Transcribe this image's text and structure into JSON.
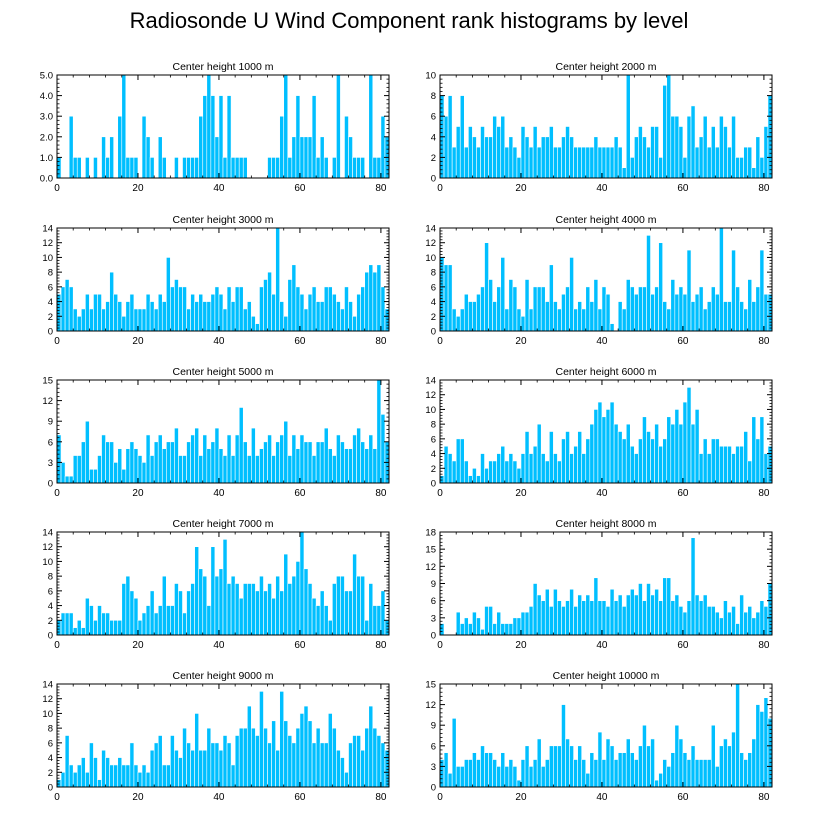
{
  "title": "Radiosonde U Wind Component rank histograms by level",
  "colors": {
    "bar": "#00bfff",
    "bar_edge": "#ffffff",
    "axis": "#000000"
  },
  "chart_data": [
    {
      "type": "bar",
      "title": "Center height 1000 m",
      "xlim": [
        0,
        82
      ],
      "ylim": [
        0,
        5
      ],
      "xticks": [
        0,
        20,
        40,
        60,
        80
      ],
      "yticks": [
        0,
        1,
        2,
        3,
        4,
        5
      ],
      "ytick_labels": [
        "0.0",
        "1.0",
        "2.0",
        "3.0",
        "4.0",
        "5.0"
      ],
      "values": [
        1,
        0,
        0,
        3,
        1,
        1,
        0,
        1,
        0,
        1,
        0,
        2,
        1,
        2,
        0,
        3,
        5,
        1,
        1,
        1,
        0,
        3,
        2,
        1,
        0,
        2,
        1,
        0,
        0,
        1,
        0,
        1,
        1,
        1,
        1,
        3,
        4,
        5,
        4,
        2,
        4,
        1,
        4,
        1,
        1,
        1,
        1,
        0,
        0,
        0,
        0,
        0,
        1,
        1,
        1,
        3,
        5,
        1,
        2,
        4,
        2,
        2,
        2,
        4,
        1,
        2,
        1,
        0,
        1,
        5,
        0,
        3,
        2,
        1,
        1,
        1,
        0,
        5,
        1,
        1,
        3,
        2
      ]
    },
    {
      "type": "bar",
      "title": "Center height 2000 m",
      "xlim": [
        0,
        82
      ],
      "ylim": [
        0,
        10
      ],
      "xticks": [
        0,
        20,
        40,
        60,
        80
      ],
      "yticks": [
        0,
        2,
        4,
        6,
        8,
        10
      ],
      "ytick_labels": [
        "0",
        "2",
        "4",
        "6",
        "8",
        "10"
      ],
      "values": [
        8,
        6,
        8,
        3,
        5,
        8,
        3,
        5,
        4,
        3,
        5,
        4,
        4,
        6,
        5,
        6,
        3,
        4,
        3,
        2,
        5,
        4,
        3,
        5,
        3,
        4,
        4,
        5,
        3,
        3,
        4,
        5,
        4,
        3,
        3,
        3,
        3,
        3,
        4,
        3,
        3,
        3,
        3,
        4,
        3,
        1,
        10,
        2,
        4,
        5,
        4,
        3,
        5,
        5,
        2,
        9,
        10,
        6,
        6,
        5,
        2,
        6,
        7,
        3,
        4,
        6,
        3,
        5,
        3,
        6,
        5,
        3,
        6,
        2,
        2,
        3,
        3,
        1,
        4,
        2,
        5,
        8
      ]
    },
    {
      "type": "bar",
      "title": "Center height 3000 m",
      "xlim": [
        0,
        82
      ],
      "ylim": [
        0,
        14
      ],
      "xticks": [
        0,
        20,
        40,
        60,
        80
      ],
      "yticks": [
        0,
        2,
        4,
        6,
        8,
        10,
        12,
        14
      ],
      "ytick_labels": [
        "0",
        "2",
        "4",
        "6",
        "8",
        "10",
        "12",
        "14"
      ],
      "values": [
        5,
        6,
        7,
        6,
        3,
        2,
        3,
        5,
        3,
        5,
        5,
        3,
        4,
        8,
        5,
        4,
        2,
        4,
        5,
        3,
        3,
        3,
        5,
        4,
        3,
        5,
        4,
        10,
        6,
        7,
        6,
        6,
        3,
        5,
        4,
        5,
        4,
        4,
        5,
        6,
        5,
        3,
        6,
        4,
        6,
        6,
        3,
        4,
        2,
        1,
        6,
        7,
        8,
        5,
        14,
        4,
        2,
        7,
        9,
        6,
        5,
        3,
        5,
        6,
        4,
        4,
        6,
        6,
        5,
        4,
        3,
        6,
        4,
        2,
        5,
        6,
        8,
        9,
        8,
        9,
        6,
        3
      ]
    },
    {
      "type": "bar",
      "title": "Center height 4000 m",
      "xlim": [
        0,
        82
      ],
      "ylim": [
        0,
        14
      ],
      "xticks": [
        0,
        20,
        40,
        60,
        80
      ],
      "yticks": [
        0,
        2,
        4,
        6,
        8,
        10,
        12,
        14
      ],
      "ytick_labels": [
        "0",
        "2",
        "4",
        "6",
        "8",
        "10",
        "12",
        "14"
      ],
      "values": [
        10,
        9,
        9,
        3,
        2,
        3,
        5,
        4,
        4,
        5,
        6,
        12,
        7,
        4,
        6,
        10,
        3,
        7,
        6,
        3,
        2,
        7,
        3,
        6,
        6,
        6,
        4,
        9,
        4,
        3,
        5,
        6,
        10,
        3,
        4,
        3,
        6,
        4,
        7,
        3,
        6,
        5,
        1,
        0,
        4,
        3,
        7,
        6,
        5,
        6,
        6,
        13,
        5,
        6,
        12,
        4,
        3,
        7,
        5,
        6,
        5,
        11,
        4,
        5,
        6,
        3,
        4,
        6,
        5,
        14,
        4,
        4,
        11,
        6,
        4,
        3,
        7,
        4,
        6,
        11,
        5,
        5
      ]
    },
    {
      "type": "bar",
      "title": "Center height 5000 m",
      "xlim": [
        0,
        82
      ],
      "ylim": [
        0,
        15
      ],
      "xticks": [
        0,
        20,
        40,
        60,
        80
      ],
      "yticks": [
        0,
        3,
        6,
        9,
        12,
        15
      ],
      "ytick_labels": [
        "0",
        "3",
        "6",
        "9",
        "12",
        "15"
      ],
      "values": [
        7,
        3,
        1,
        1,
        4,
        4,
        6,
        9,
        2,
        2,
        4,
        7,
        6,
        6,
        3,
        5,
        2,
        5,
        6,
        5,
        4,
        3,
        7,
        4,
        6,
        7,
        5,
        6,
        6,
        8,
        4,
        4,
        6,
        7,
        8,
        4,
        7,
        5,
        6,
        8,
        5,
        4,
        7,
        4,
        7,
        11,
        6,
        4,
        8,
        4,
        5,
        6,
        7,
        4,
        6,
        7,
        9,
        4,
        7,
        5,
        7,
        6,
        6,
        4,
        6,
        6,
        8,
        5,
        4,
        7,
        6,
        5,
        5,
        7,
        8,
        6,
        5,
        7,
        5,
        15,
        10,
        6
      ]
    },
    {
      "type": "bar",
      "title": "Center height 6000 m",
      "xlim": [
        0,
        82
      ],
      "ylim": [
        0,
        14
      ],
      "xticks": [
        0,
        20,
        40,
        60,
        80
      ],
      "yticks": [
        0,
        2,
        4,
        6,
        8,
        10,
        12,
        14
      ],
      "ytick_labels": [
        "0",
        "2",
        "4",
        "6",
        "8",
        "10",
        "12",
        "14"
      ],
      "values": [
        1,
        5,
        4,
        3,
        6,
        6,
        3,
        1,
        2,
        1,
        4,
        2,
        3,
        3,
        4,
        5,
        3,
        4,
        3,
        2,
        4,
        7,
        4,
        5,
        8,
        4,
        3,
        7,
        4,
        3,
        6,
        7,
        4,
        5,
        7,
        4,
        6,
        8,
        10,
        11,
        9,
        10,
        11,
        8,
        7,
        6,
        8,
        5,
        4,
        6,
        9,
        7,
        6,
        8,
        5,
        6,
        9,
        8,
        10,
        8,
        11,
        13,
        8,
        10,
        4,
        6,
        4,
        6,
        6,
        5,
        5,
        5,
        4,
        5,
        5,
        7,
        3,
        9,
        6,
        9,
        4,
        5
      ]
    },
    {
      "type": "bar",
      "title": "Center height 7000 m",
      "xlim": [
        0,
        82
      ],
      "ylim": [
        0,
        14
      ],
      "xticks": [
        0,
        20,
        40,
        60,
        80
      ],
      "yticks": [
        0,
        2,
        4,
        6,
        8,
        10,
        12,
        14
      ],
      "ytick_labels": [
        "0",
        "2",
        "4",
        "6",
        "8",
        "10",
        "12",
        "14"
      ],
      "values": [
        2,
        3,
        3,
        3,
        1,
        2,
        1,
        5,
        4,
        2,
        4,
        3,
        3,
        2,
        2,
        2,
        7,
        8,
        6,
        5,
        2,
        3,
        4,
        6,
        3,
        4,
        8,
        4,
        4,
        7,
        6,
        3,
        6,
        7,
        12,
        9,
        8,
        4,
        12,
        8,
        9,
        13,
        7,
        8,
        7,
        5,
        7,
        7,
        7,
        6,
        8,
        6,
        7,
        5,
        8,
        6,
        11,
        7,
        8,
        10,
        14,
        9,
        7,
        5,
        4,
        6,
        4,
        2,
        7,
        8,
        8,
        6,
        6,
        11,
        8,
        8,
        2,
        7,
        4,
        4,
        6,
        2
      ]
    },
    {
      "type": "bar",
      "title": "Center height 8000 m",
      "xlim": [
        0,
        82
      ],
      "ylim": [
        0,
        18
      ],
      "xticks": [
        0,
        20,
        40,
        60,
        80
      ],
      "yticks": [
        0,
        3,
        6,
        9,
        12,
        15,
        18
      ],
      "ytick_labels": [
        "0",
        "3",
        "6",
        "9",
        "12",
        "15",
        "18"
      ],
      "values": [
        2,
        0,
        0,
        0,
        4,
        2,
        3,
        2,
        4,
        3,
        1,
        5,
        5,
        2,
        4,
        2,
        2,
        2,
        3,
        3,
        4,
        4,
        5,
        9,
        7,
        6,
        8,
        5,
        8,
        6,
        5,
        6,
        8,
        5,
        7,
        6,
        7,
        6,
        10,
        6,
        6,
        5,
        8,
        6,
        7,
        5,
        7,
        8,
        7,
        9,
        6,
        9,
        7,
        8,
        6,
        10,
        10,
        6,
        7,
        5,
        4,
        6,
        17,
        7,
        6,
        7,
        5,
        5,
        4,
        3,
        6,
        4,
        5,
        2,
        7,
        4,
        5,
        3,
        4,
        6,
        5,
        9
      ]
    },
    {
      "type": "bar",
      "title": "Center height 9000 m",
      "xlim": [
        0,
        82
      ],
      "ylim": [
        0,
        14
      ],
      "xticks": [
        0,
        20,
        40,
        60,
        80
      ],
      "yticks": [
        0,
        2,
        4,
        6,
        8,
        10,
        12,
        14
      ],
      "ytick_labels": [
        "0",
        "2",
        "4",
        "6",
        "8",
        "10",
        "12",
        "14"
      ],
      "values": [
        1,
        2,
        7,
        3,
        2,
        3,
        4,
        2,
        6,
        4,
        1,
        5,
        4,
        3,
        3,
        4,
        3,
        3,
        6,
        3,
        2,
        3,
        2,
        5,
        6,
        7,
        3,
        3,
        7,
        5,
        4,
        8,
        6,
        5,
        10,
        5,
        5,
        8,
        6,
        6,
        5,
        7,
        6,
        3,
        7,
        8,
        8,
        11,
        8,
        7,
        13,
        8,
        6,
        9,
        5,
        13,
        9,
        7,
        6,
        8,
        10,
        11,
        9,
        6,
        8,
        6,
        6,
        10,
        8,
        5,
        4,
        2,
        6,
        7,
        7,
        5,
        8,
        11,
        8,
        7,
        6,
        5
      ]
    },
    {
      "type": "bar",
      "title": "Center height 10000 m",
      "xlim": [
        0,
        82
      ],
      "ylim": [
        0,
        15
      ],
      "xticks": [
        0,
        20,
        40,
        60,
        80
      ],
      "yticks": [
        0,
        3,
        6,
        9,
        12,
        15
      ],
      "ytick_labels": [
        "0",
        "3",
        "6",
        "9",
        "12",
        "15"
      ],
      "values": [
        4,
        5,
        2,
        10,
        3,
        3,
        4,
        4,
        5,
        4,
        6,
        5,
        5,
        4,
        3,
        5,
        3,
        4,
        3,
        1,
        4,
        6,
        3,
        4,
        7,
        3,
        4,
        6,
        6,
        6,
        12,
        7,
        6,
        4,
        6,
        4,
        2,
        5,
        4,
        8,
        4,
        7,
        6,
        4,
        5,
        5,
        7,
        5,
        4,
        6,
        9,
        6,
        7,
        1,
        2,
        4,
        3,
        5,
        9,
        7,
        5,
        4,
        6,
        4,
        4,
        4,
        4,
        9,
        3,
        6,
        7,
        6,
        8,
        15,
        5,
        4,
        5,
        7,
        12,
        11,
        13,
        10
      ]
    }
  ]
}
